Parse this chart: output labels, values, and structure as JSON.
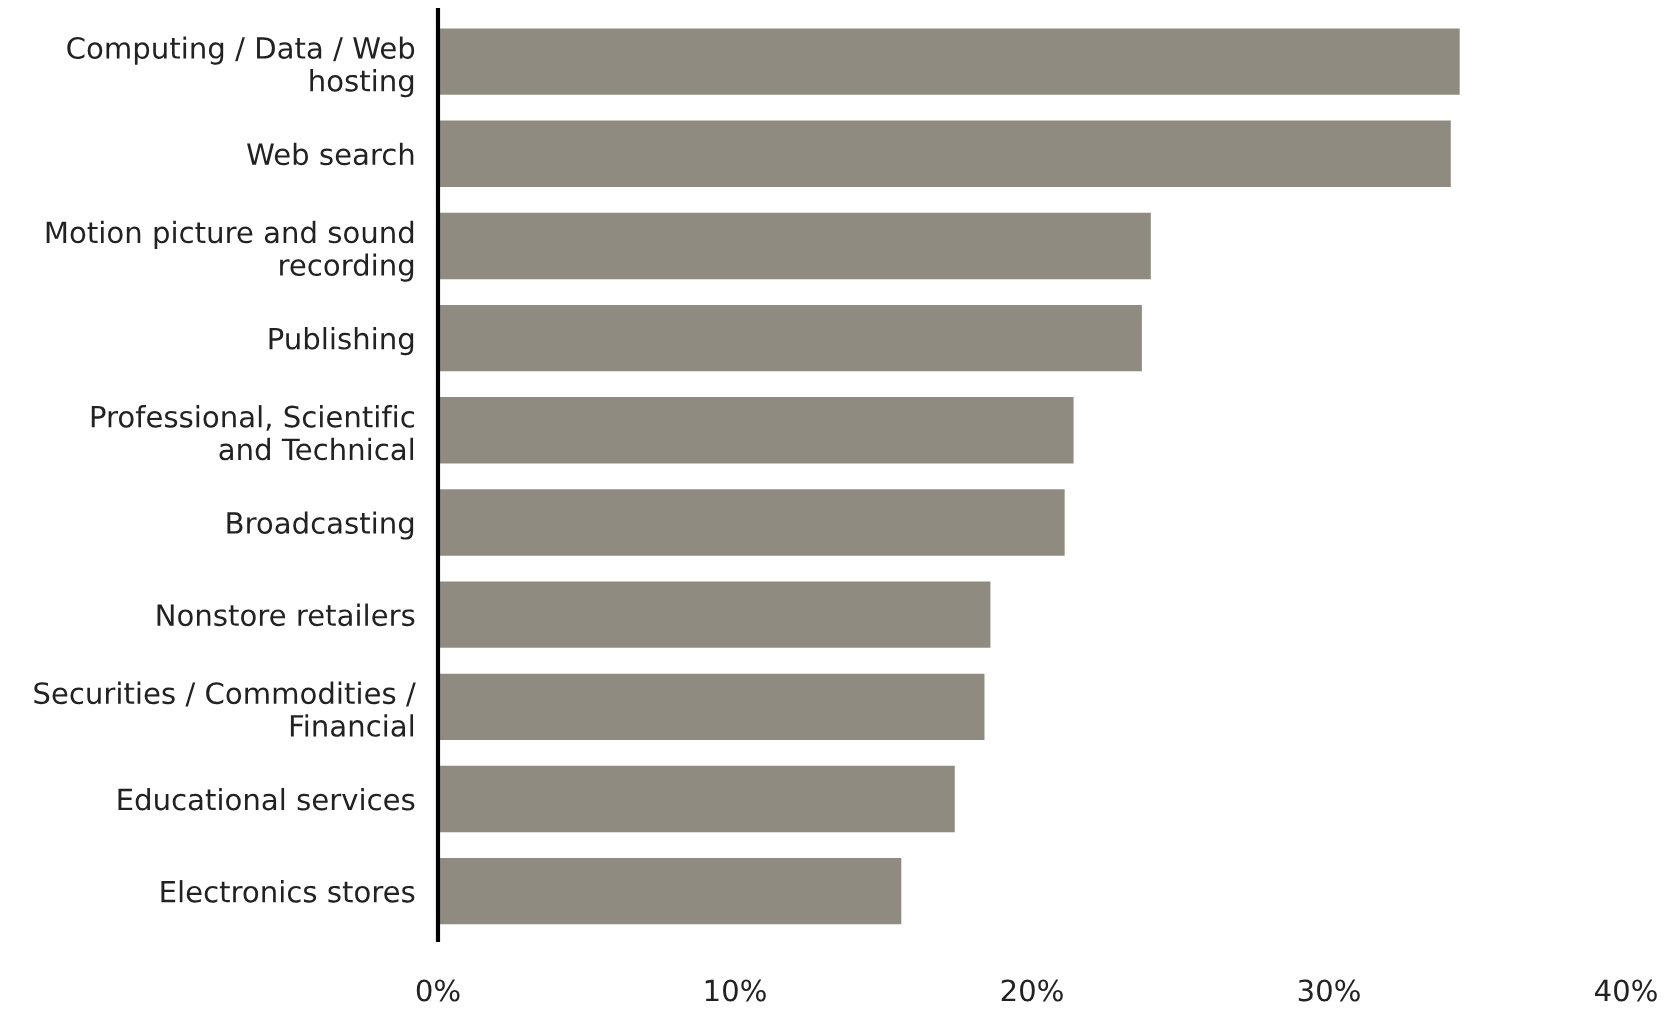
{
  "chart_data": {
    "type": "bar",
    "orientation": "horizontal",
    "categories": [
      "Computing / Data / Web\nhosting",
      "Web search",
      "Motion picture and sound\nrecording",
      "Publishing",
      "Professional, Scientific\nand Technical",
      "Broadcasting",
      "Nonstore retailers",
      "Securities / Commodities /\nFinancial",
      "Educational services",
      "Electronics stores"
    ],
    "values": [
      34.4,
      34.1,
      24.0,
      23.7,
      21.4,
      21.1,
      18.6,
      18.4,
      17.4,
      15.6
    ],
    "color": "#8f8b81",
    "xlim": [
      0,
      40
    ],
    "xticks": [
      {
        "value": 0,
        "label": "0%"
      },
      {
        "value": 10,
        "label": "10%"
      },
      {
        "value": 20,
        "label": "20%"
      },
      {
        "value": 30,
        "label": "30%"
      },
      {
        "value": 40,
        "label": "40%"
      }
    ],
    "grid": false,
    "legend": false
  }
}
